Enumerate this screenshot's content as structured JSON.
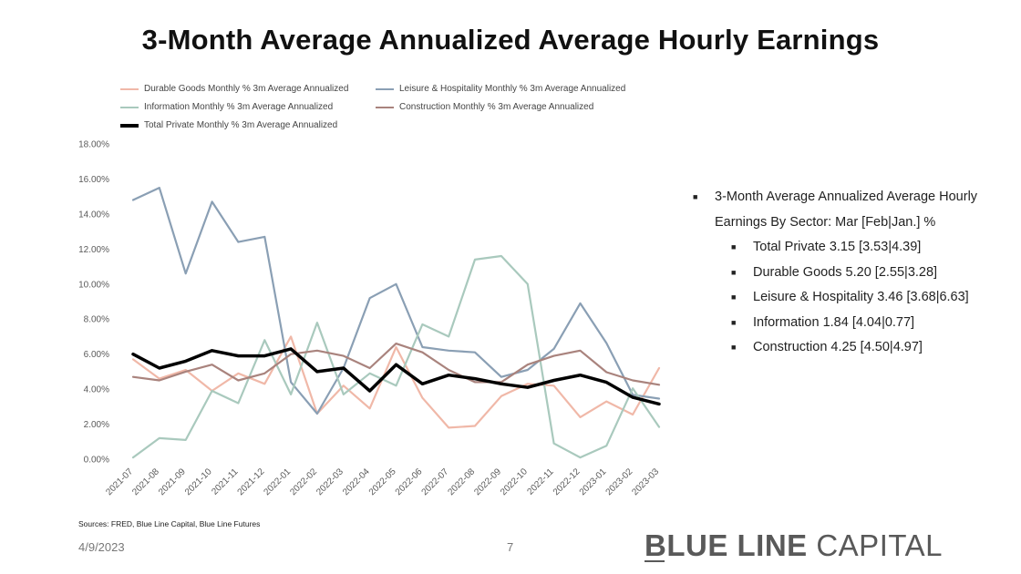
{
  "title": "3-Month Average Annualized Average Hourly Earnings",
  "legend": [
    {
      "label": "Durable Goods Monthly % 3m Average Annualized",
      "color": "#f0b8a8"
    },
    {
      "label": "Leisure & Hospitality Monthly % 3m Average Annualized",
      "color": "#8a9fb4"
    },
    {
      "label": "Information Monthly % 3m Average Annualized",
      "color": "#a9c9bd"
    },
    {
      "label": "Construction Monthly % 3m Average Annualized",
      "color": "#a9837d"
    },
    {
      "label": "Total Private Monthly % 3m Average Annualized",
      "color": "#000000"
    }
  ],
  "chart_data": {
    "type": "line",
    "x": [
      "2021-07",
      "2021-08",
      "2021-09",
      "2021-10",
      "2021-11",
      "2021-12",
      "2022-01",
      "2022-02",
      "2022-03",
      "2022-04",
      "2022-05",
      "2022-06",
      "2022-07",
      "2022-08",
      "2022-09",
      "2022-10",
      "2022-11",
      "2022-12",
      "2023-01",
      "2023-02",
      "2023-03"
    ],
    "ylim": [
      0,
      18
    ],
    "yticks": [
      "0.00%",
      "2.00%",
      "4.00%",
      "6.00%",
      "8.00%",
      "10.00%",
      "12.00%",
      "14.00%",
      "16.00%",
      "18.00%"
    ],
    "grid": false,
    "legend_position": "top",
    "series": [
      {
        "name": "Durable Goods Monthly % 3m Average Annualized",
        "color": "#f0b8a8",
        "values": [
          5.7,
          4.6,
          5.1,
          3.9,
          4.9,
          4.3,
          7.0,
          2.6,
          4.2,
          2.9,
          6.4,
          3.5,
          1.8,
          1.9,
          3.6,
          4.3,
          4.2,
          2.4,
          3.3,
          2.55,
          5.2
        ]
      },
      {
        "name": "Leisure & Hospitality Monthly % 3m Average Annualized",
        "color": "#8a9fb4",
        "values": [
          14.8,
          15.5,
          10.6,
          14.7,
          12.4,
          12.7,
          4.4,
          2.6,
          5.2,
          9.2,
          10.0,
          6.4,
          6.2,
          6.1,
          4.7,
          5.1,
          6.3,
          8.9,
          6.63,
          3.68,
          3.46
        ]
      },
      {
        "name": "Information Monthly % 3m Average Annualized",
        "color": "#a9c9bd",
        "values": [
          0.1,
          1.2,
          1.1,
          3.9,
          3.2,
          6.8,
          3.7,
          7.8,
          3.7,
          4.9,
          4.2,
          7.7,
          7.0,
          11.4,
          11.6,
          10.0,
          0.9,
          0.1,
          0.77,
          4.04,
          1.84
        ]
      },
      {
        "name": "Construction Monthly % 3m Average Annualized",
        "color": "#a9837d",
        "values": [
          4.7,
          4.5,
          5.0,
          5.4,
          4.5,
          4.9,
          6.0,
          6.2,
          5.9,
          5.2,
          6.6,
          6.1,
          5.1,
          4.4,
          4.4,
          5.4,
          5.9,
          6.2,
          4.97,
          4.5,
          4.25
        ]
      },
      {
        "name": "Total Private Monthly % 3m Average Annualized",
        "color": "#000000",
        "values": [
          6.0,
          5.2,
          5.6,
          6.2,
          5.9,
          5.9,
          6.3,
          5.0,
          5.2,
          3.9,
          5.4,
          4.3,
          4.8,
          4.6,
          4.3,
          4.1,
          4.5,
          4.8,
          4.39,
          3.53,
          3.15
        ]
      }
    ]
  },
  "bullets": {
    "main": "3-Month Average Annualized Average Hourly Earnings By Sector: Mar [Feb|Jan.] %",
    "items": [
      "Total Private 3.15 [3.53|4.39]",
      "Durable Goods 5.20 [2.55|3.28]",
      "Leisure & Hospitality 3.46 [3.68|6.63]",
      "Information 1.84 [4.04|0.77]",
      "Construction 4.25 [4.50|4.97]"
    ]
  },
  "footer": {
    "source": "Sources: FRED, Blue Line Capital, Blue Line Futures",
    "date": "4/9/2023",
    "page": "7",
    "brand_bold": "BLUE LINE",
    "brand_light": "CAPITAL"
  }
}
